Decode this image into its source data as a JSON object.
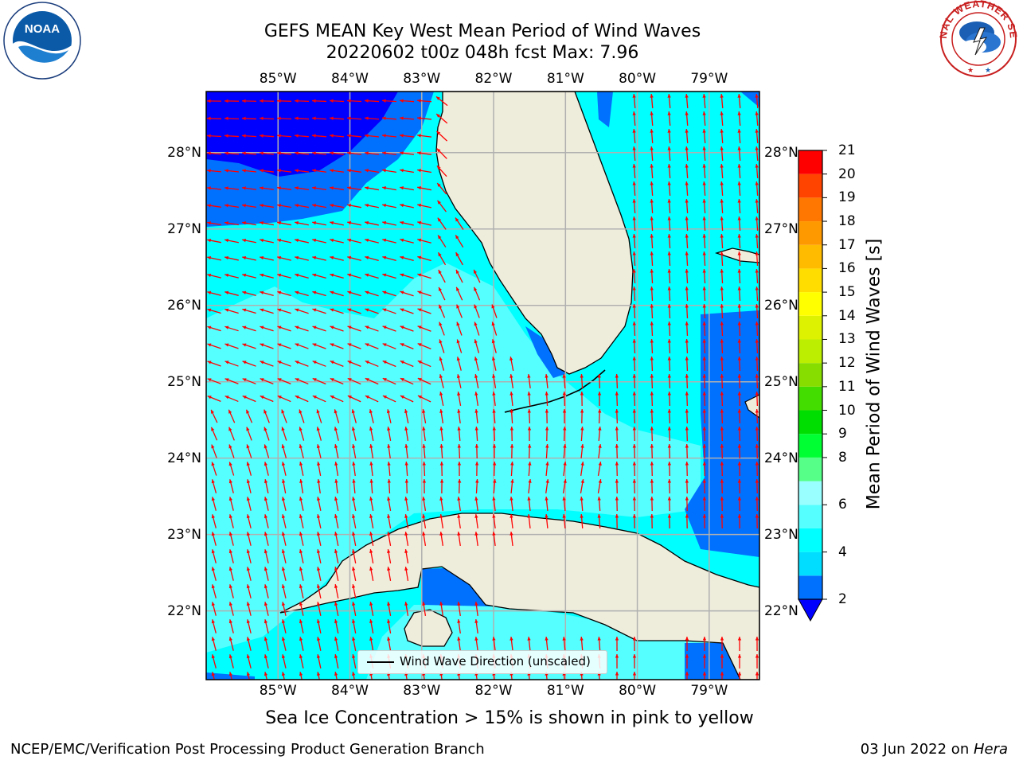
{
  "header": {
    "title_line1": "GEFS MEAN Key West Mean Period of Wind Waves",
    "title_line2": "20220602 t00z 048h fcst   Max: 7.96"
  },
  "logos": {
    "left": {
      "name": "noaa-logo",
      "text": "NOAA",
      "ring_text": "NATIONAL OCEANIC AND ATMOSPHERIC ADMINISTRATION · U.S. DEPARTMENT OF COMMERCE"
    },
    "right": {
      "name": "nws-logo",
      "ring_text": "NATIONAL WEATHER SERVICE"
    }
  },
  "map": {
    "extent": {
      "lon": [
        -86.0,
        -78.3
      ],
      "lat": [
        21.1,
        28.8
      ]
    },
    "lon_ticks": [
      "85°W",
      "84°W",
      "83°W",
      "82°W",
      "81°W",
      "80°W",
      "79°W"
    ],
    "lon_values": [
      -85,
      -84,
      -83,
      -82,
      -81,
      -80,
      -79
    ],
    "lat_ticks": [
      "28°N",
      "27°N",
      "26°N",
      "25°N",
      "24°N",
      "23°N",
      "22°N"
    ],
    "lat_values": [
      28,
      27,
      26,
      25,
      24,
      23,
      22
    ],
    "grid": true,
    "arrow_color": "#ff0000",
    "land_color": "#eeeddc",
    "coast_color": "#000000"
  },
  "legend": {
    "label": "Wind Wave Direction (unscaled)"
  },
  "colorbar": {
    "label": "Mean Period of Wind Waves [s]",
    "ticks": [
      "2",
      "4",
      "6",
      "8",
      "9",
      "10",
      "11",
      "12",
      "13",
      "14",
      "15",
      "16",
      "17",
      "18",
      "19",
      "20",
      "21"
    ],
    "levels": [
      2,
      3,
      4,
      5,
      6,
      7,
      8,
      9,
      10,
      11,
      12,
      13,
      14,
      15,
      16,
      17,
      18,
      19,
      20,
      21
    ],
    "colors": [
      "#0070ff",
      "#00ddff",
      "#00ffff",
      "#55ffff",
      "#99ffff",
      "#55ff88",
      "#00ff33",
      "#00dd00",
      "#44dd00",
      "#88dd00",
      "#bbee00",
      "#ddf200",
      "#ffff00",
      "#ffdd00",
      "#ffbb00",
      "#ff9900",
      "#ff7700",
      "#ff4400",
      "#ff0000"
    ],
    "under_color": "#0000ff"
  },
  "footer": {
    "note": "Sea Ice Concentration > 15% is shown in pink to yellow",
    "credit": "NCEP/EMC/Verification Post Processing Product Generation Branch",
    "date": "03 Jun 2022 on ",
    "machine": "Hera"
  }
}
